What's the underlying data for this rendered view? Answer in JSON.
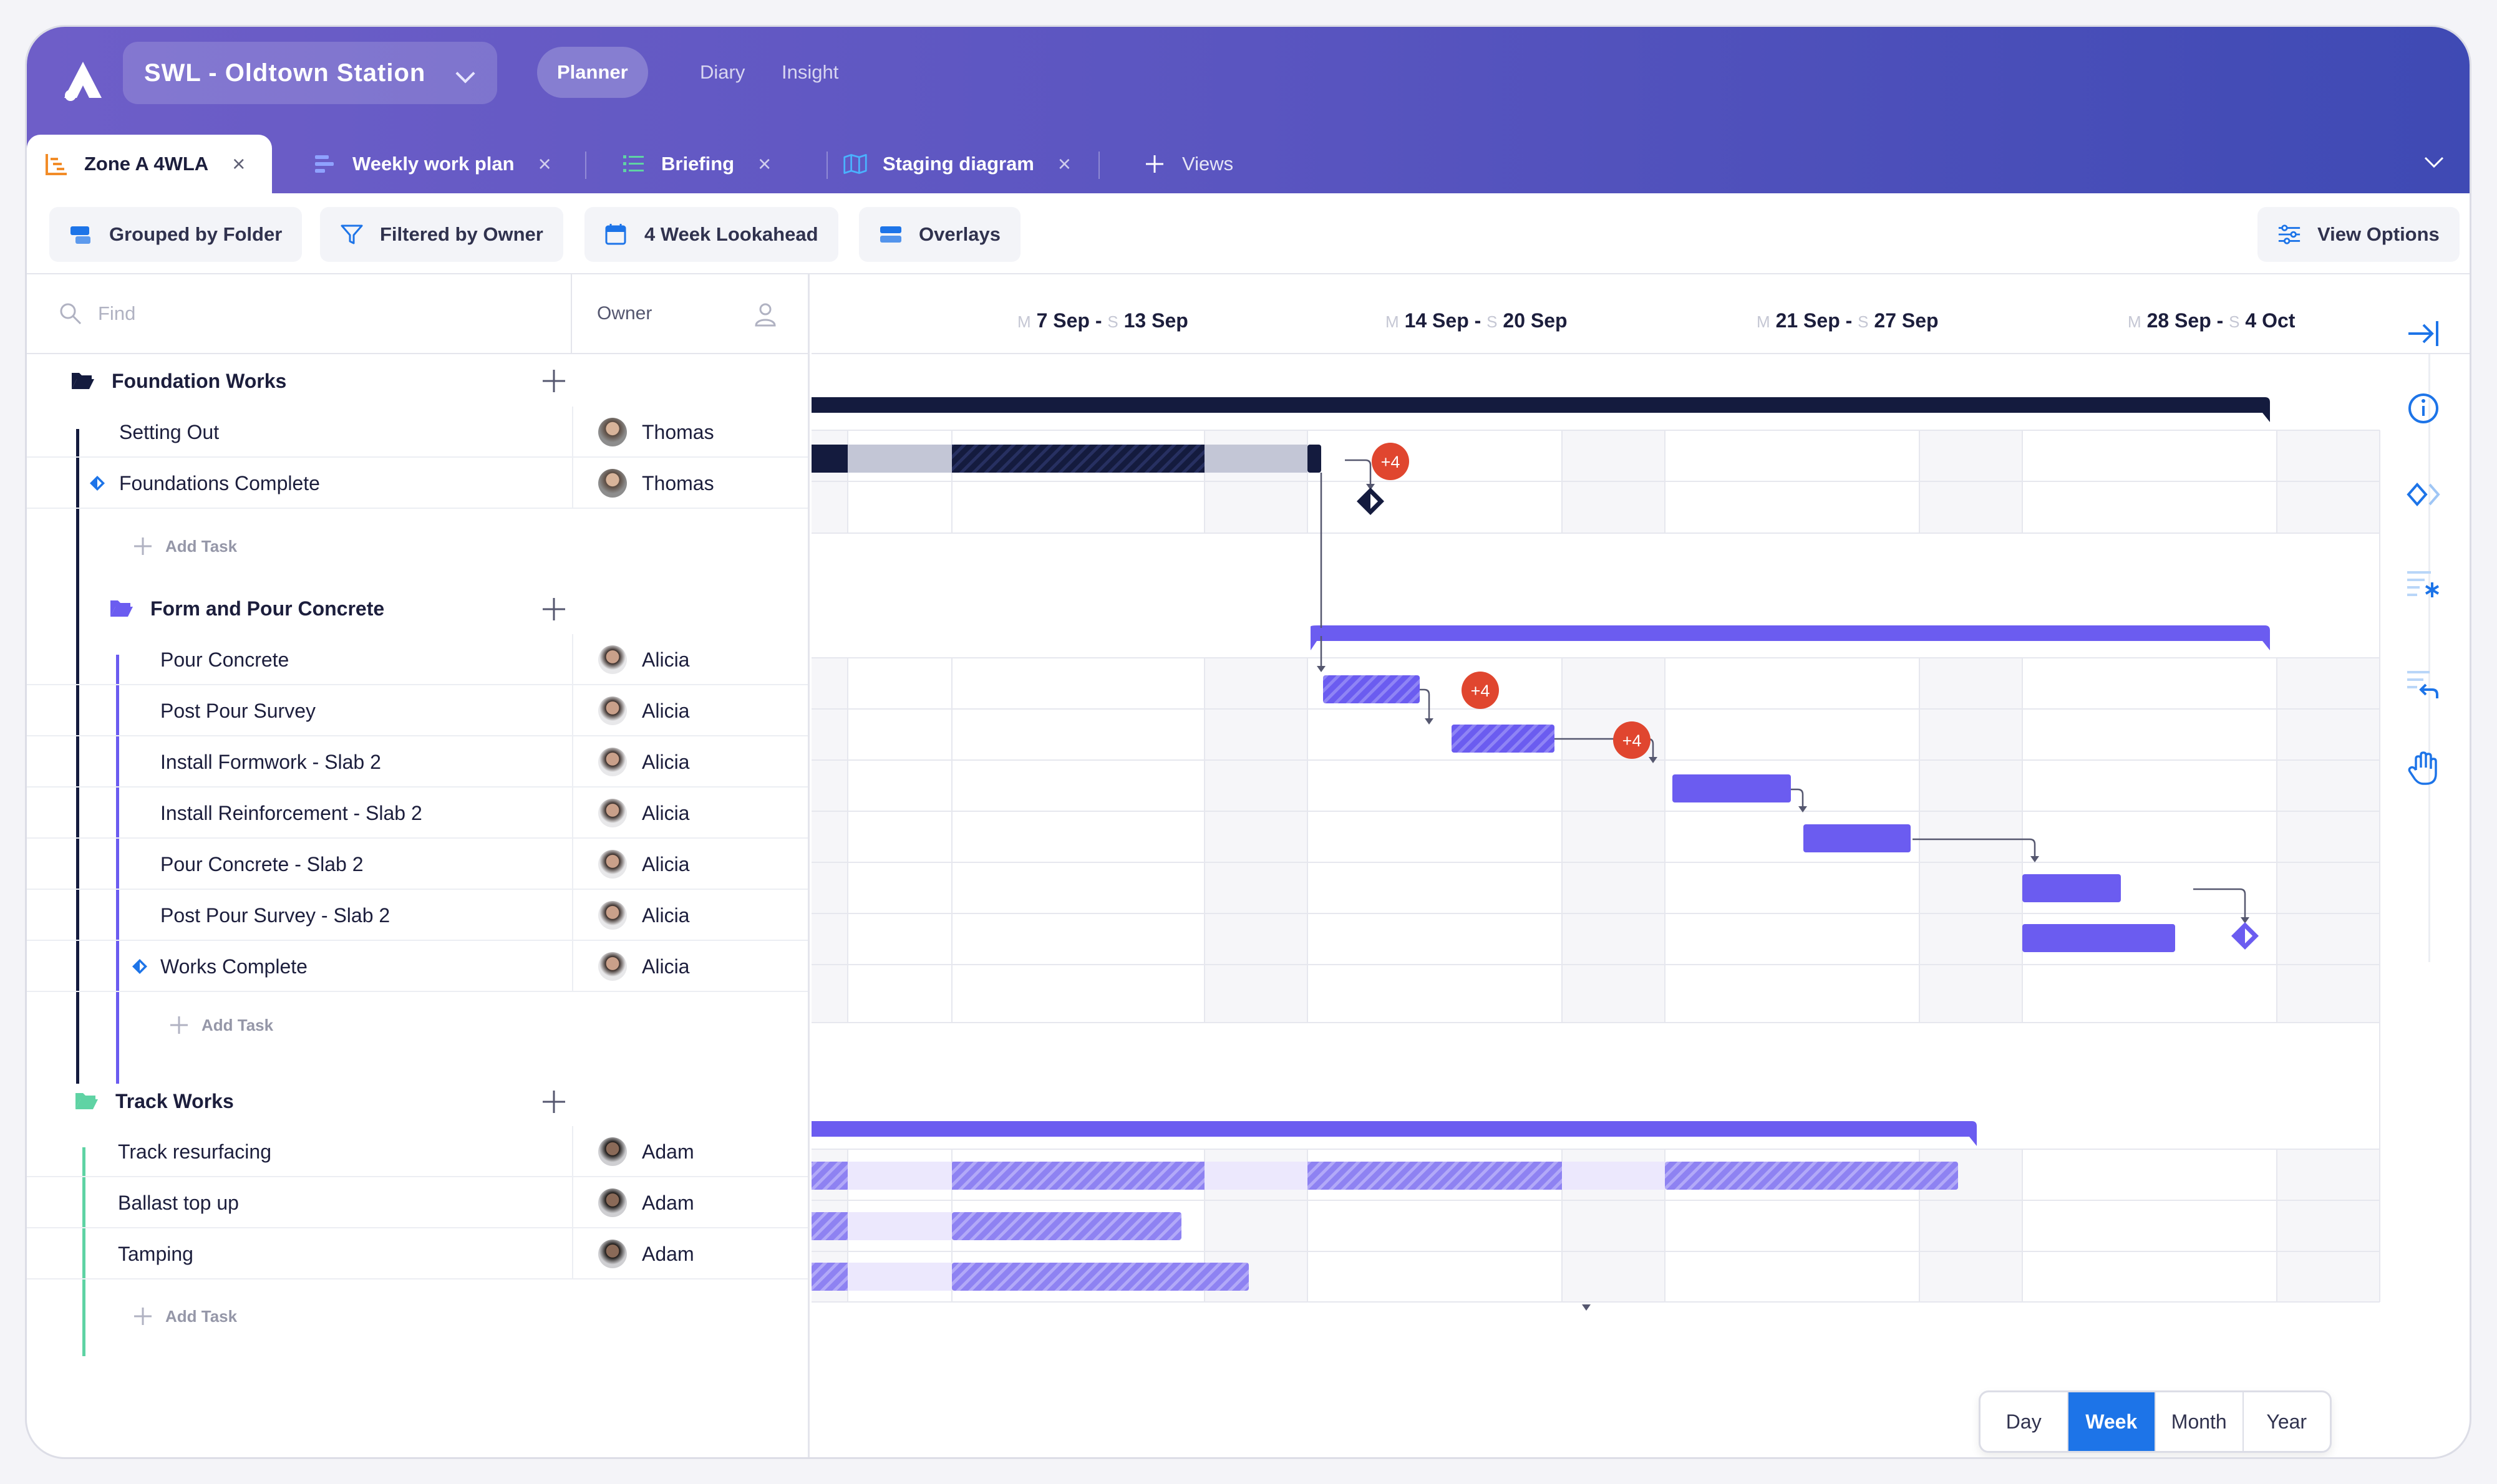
{
  "header": {
    "project": "SWL - Oldtown Station",
    "nav": [
      "Planner",
      "Diary",
      "Insight"
    ],
    "active_nav": "Planner"
  },
  "tabs": [
    {
      "label": "Zone A 4WLA",
      "icon": "gantt-icon",
      "active": true
    },
    {
      "label": "Weekly work plan",
      "icon": "bars-icon",
      "active": false
    },
    {
      "label": "Briefing",
      "icon": "list-icon",
      "active": false
    },
    {
      "label": "Staging diagram",
      "icon": "map-icon",
      "active": false
    }
  ],
  "views_label": "Views",
  "toolbar": {
    "grouped": "Grouped by Folder",
    "filtered": "Filtered by Owner",
    "lookahead": "4 Week Lookahead",
    "overlays": "Overlays",
    "view_options": "View Options"
  },
  "list": {
    "find_placeholder": "Find",
    "owner_header": "Owner",
    "add_task": "Add Task"
  },
  "timeline": {
    "weeks": [
      {
        "start_day": "M",
        "start": "7 Sep -",
        "end_day": "S",
        "end": "13 Sep"
      },
      {
        "start_day": "M",
        "start": "14 Sep -",
        "end_day": "S",
        "end": "20 Sep"
      },
      {
        "start_day": "M",
        "start": "21 Sep -",
        "end_day": "S",
        "end": "27 Sep"
      },
      {
        "start_day": "M",
        "start": "28 Sep -",
        "end_day": "S",
        "end": "4 Oct"
      }
    ]
  },
  "groups": [
    {
      "name": "Foundation Works",
      "color": "#141b3e",
      "tasks": [
        {
          "name": "Setting Out",
          "owner": "Thomas",
          "milestone": false
        },
        {
          "name": "Foundations Complete",
          "owner": "Thomas",
          "milestone": true
        }
      ]
    },
    {
      "name": "Form and Pour Concrete",
      "color": "#6b5cf0",
      "tasks": [
        {
          "name": "Pour Concrete",
          "owner": "Alicia",
          "milestone": false
        },
        {
          "name": "Post Pour Survey",
          "owner": "Alicia",
          "milestone": false
        },
        {
          "name": "Install Formwork - Slab 2",
          "owner": "Alicia",
          "milestone": false
        },
        {
          "name": "Install Reinforcement - Slab 2",
          "owner": "Alicia",
          "milestone": false
        },
        {
          "name": "Pour Concrete - Slab 2",
          "owner": "Alicia",
          "milestone": false
        },
        {
          "name": "Post Pour Survey - Slab 2",
          "owner": "Alicia",
          "milestone": false
        },
        {
          "name": "Works Complete",
          "owner": "Alicia",
          "milestone": true
        }
      ]
    },
    {
      "name": "Track Works",
      "color": "#5fd3a4",
      "tasks": [
        {
          "name": "Track resurfacing",
          "owner": "Adam",
          "milestone": false
        },
        {
          "name": "Ballast top up",
          "owner": "Adam",
          "milestone": false
        },
        {
          "name": "Tamping",
          "owner": "Adam",
          "milestone": false
        }
      ]
    }
  ],
  "badges": [
    "+4",
    "+4",
    "+4"
  ],
  "zoom": {
    "options": [
      "Day",
      "Week",
      "Month",
      "Year"
    ],
    "active": "Week"
  },
  "colors": {
    "accent": "#6b5cf0",
    "navy": "#141b3e",
    "badge": "#e0462f",
    "blue": "#1d74e8",
    "green": "#5fd3a4"
  }
}
